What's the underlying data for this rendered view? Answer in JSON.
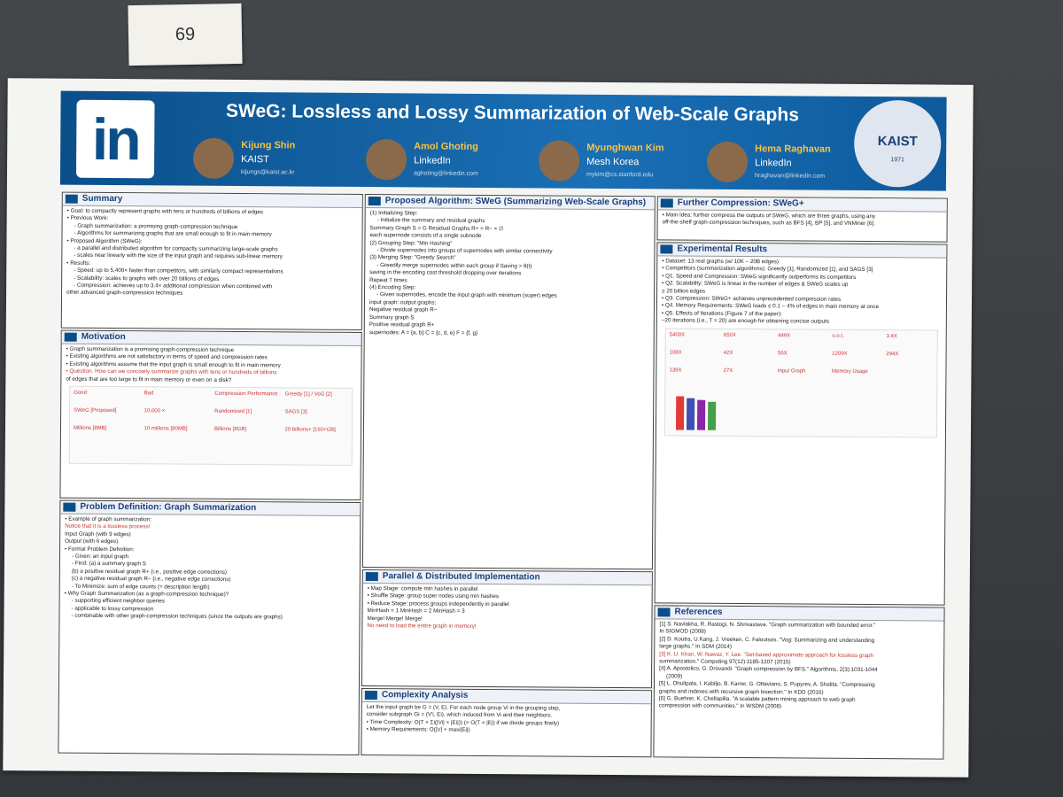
{
  "card": "69",
  "header": {
    "logo": "in",
    "title": "SWeG: Lossless and Lossy Summarization of Web-Scale Graphs",
    "authors": [
      {
        "name": "Kijung Shin",
        "affiliation": "KAIST",
        "email": "kijungs@kaist.ac.kr"
      },
      {
        "name": "Amol Ghoting",
        "affiliation": "LinkedIn",
        "email": "aghoting@linkedin.com"
      },
      {
        "name": "Myunghwan Kim",
        "affiliation": "Mesh Korea",
        "email": "mykim@cs.stanford.edu"
      },
      {
        "name": "Hema Raghavan",
        "affiliation": "LinkedIn",
        "email": "hraghavan@linkedin.com"
      }
    ],
    "seal": "KAIST",
    "seal_year": "1971"
  },
  "sections": [
    {
      "title": "Summary",
      "lines": [
        "• Goal: to compactly represent graphs with tens or hundreds of billions of edges",
        "• Previous Work:",
        "- Graph summarization: a promising graph-compression technique",
        "- Algorithms for summarizing graphs that are small enough to fit in main memory",
        "• Proposed Algorithm (SWeG):",
        "- a parallel and distributed algorithm for compactly summarizing large-scale graphs",
        "- scales near linearly with the size of the input graph and requires sub-linear memory",
        "• Results:",
        "- Speed: up to 5,400× faster than competitors, with similarly compact representations",
        "- Scalability: scales to graphs with over 20 billions of edges",
        "- Compression: achieves up to 3.4× additional compression when combined with",
        "other advanced graph-compression techniques"
      ]
    },
    {
      "title": "Motivation",
      "lines": [
        "• Graph summarization is a promising graph-compression technique",
        "• Existing algorithms are not satisfactory in terms of speed and compression rates",
        "• Existing algorithms assume that the input graph is small enough to fit in main memory",
        "• Question. How can we concisely summarize graphs with tens or hundreds of billions",
        "of edges that are too large to fit in main memory or even on a disk?"
      ],
      "figure": [
        "Good",
        "Bad",
        "Compression Performance",
        "Greedy [1] / VoG [2]",
        "SWeG [Proposed]",
        "10,000 ×",
        "Randomized [1]",
        "SAGS [3]",
        "Millions [8MB]",
        "10 millions [80MB]",
        "Billions [8GB]",
        "20 billions+ [160+GB]"
      ]
    },
    {
      "title": "Problem Definition: Graph Summarization",
      "lines": [
        "• Example of graph summarization:",
        "Notice that it is a lossless process!",
        "Input Graph (with 9 edges)",
        "Output (with 6 edges)",
        "• Formal Problem Definition:",
        "- Given: an input graph",
        "- Find: (a) a summary graph S",
        "(b) a positive residual graph R+ (i.e., positive edge corrections)",
        "(c) a negative residual graph R− (i.e., negative edge corrections)",
        "- To Minimize: sum of edge counts (≈ description length)",
        "• Why Graph Summarization (as a graph-compression technique)?",
        "- supporting efficient neighbor queries",
        "- applicable to lossy compression",
        "- combinable with other graph-compression techniques (since the outputs are graphs)"
      ]
    },
    {
      "title": "Proposed Algorithm: SWeG (Summarizing Web-Scale Graphs)",
      "lines": [
        "(1) Initializing Step:",
        "- Initialize the summary and residual graphs",
        "Summary Graph S = G     Residual Graphs R+ = R− = ∅",
        "each supernode consists of a single subnode",
        "(2) Grouping Step: \"Min Hashing\"",
        "- Divide supernodes into groups of supernodes with similar connectivity",
        "(3) Merging Step: \"Greedy Search\"",
        "- Greedily merge supernodes within each group if Saving > θ(t)",
        "saving in the encoding cost     threshold dropping over iterations",
        "Repeat T times",
        "(4) Encoding Step:",
        "- Given supernodes, encode the input graph with minimum (super) edges",
        "input graph:     output graphs:",
        "Negative residual graph R−",
        "Summary graph S",
        "Positive residual graph R+",
        "supernodes: A = {a, b}  C = {c, d, e}  F = {f, g}"
      ]
    },
    {
      "title": "Parallel & Distributed Implementation",
      "lines": [
        "• Map Stage: compute min hashes in parallel",
        "• Shuffle Stage: group super nodes using min hashes",
        "• Reduce Stage: process groups independently in parallel",
        "MinHash = 1     MinHash = 2     MinHash = 3",
        "Merge!     Merge!     Merge!",
        "No need to load the entire graph in memory!"
      ]
    },
    {
      "title": "Complexity Analysis",
      "lines": [
        "Let the input graph be G = (V, E). For each node group Vi in the grouping step,",
        "consider subgraph Gi = (V'i, Ei), which induced from Vi and their neighbors.",
        "• Time Complexity: O(T × Σi(|Vi| × |Ei|)) (= O(T × |E|) if we divide groups finely)",
        "• Memory Requirements: O(|V| + maxi|Ei|)"
      ]
    },
    {
      "title": "Further Compression: SWeG+",
      "lines": [
        "• Main Idea: further compress the outputs of SWeG, which are three graphs, using any",
        "off-the-shelf graph-compression techniques, such as BFS [4], BP [5], and VNMiner [6]."
      ]
    },
    {
      "title": "Experimental Results",
      "lines": [
        "• Dataset: 13 real graphs (w/ 10K – 20B edges)",
        "• Competitors (summarization algorithms): Greedy [1], Randomized [1], and SAGS [3]",
        "• Q1. Speed and Compression: SWeG significantly outperforms its competitors",
        "• Q2. Scalability: SWeG is linear in the number of edges & SWeG scales up",
        "≥ 20 billion edges",
        "• Q3. Compression: SWeG+ achieves unprecedented compression rates",
        "• Q4. Memory Requirements: SWeG loads ≤ 0.1 − 4% of edges in main memory at once",
        "• Q5. Effects of Iterations (Figure 7 of the paper):",
        "~20 iterations (i.e., T = 20) are enough for obtaining concise outputs"
      ],
      "figure": [
        "5400X",
        "650X",
        "449X",
        "o.o.t.",
        "3.4X",
        "108X",
        "42X",
        "56X",
        "1209X",
        "294X",
        "139X",
        "27X",
        "Input Graph",
        "Memory Usage"
      ]
    },
    {
      "title": "References",
      "lines": [
        "[1] S. Navlakha, R. Rastogi, N. Shrivastava. \"Graph summarization with bounded error.\"",
        "In SIGMOD (2008)",
        "[2] D. Koutra, U.Kang, J. Vreeken, C. Faloutsos. \"Vog: Summarizing and understanding",
        "large graphs.\" In SDM (2014)",
        "[3] K. U. Khan, W. Nawaz, Y. Lee. \"Set-based approximate approach for lossless graph",
        "summarization.\" Computing 97(12):1185-1207 (2015)",
        "[4] A. Apostolico, G. Drovandi. \"Graph compression by BFS.\" Algorithms, 2(3):1031-1044",
        "(2009)",
        "[5] L. Dhulipala, I. Kabiljo, B. Karrer, G. Ottaviano, S. Pupyrev, A. Shalita. \"Compressing",
        "graphs and indexes with recursive graph bisection.\" In KDD (2016)",
        "[6] G. Buehrer, K. Chellapilla. \"A scalable pattern mining approach to web graph",
        "compression with communities.\" In WSDM (2008)"
      ]
    }
  ]
}
